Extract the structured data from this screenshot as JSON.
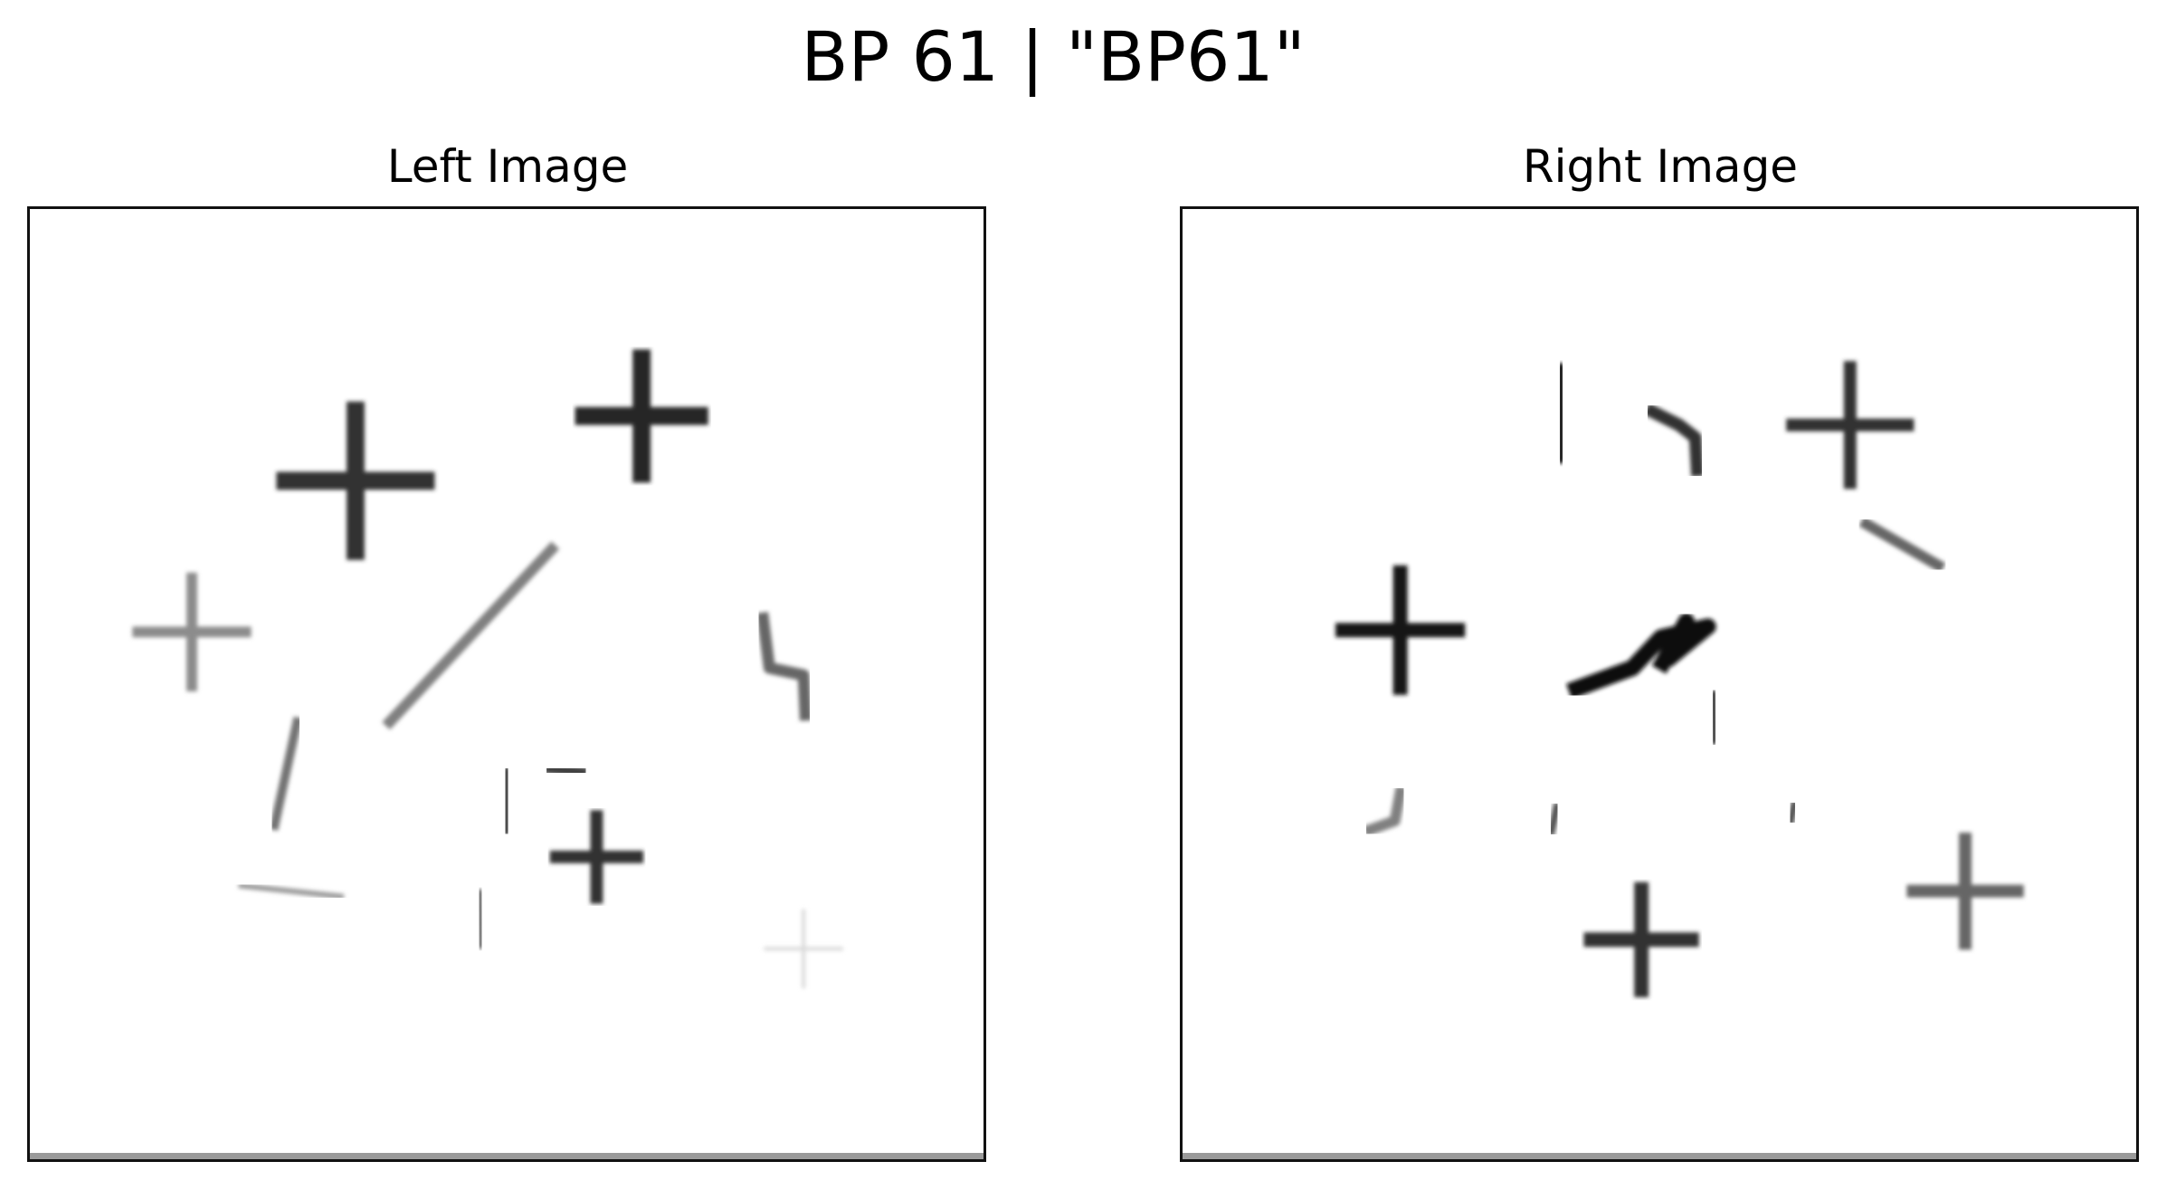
{
  "figure": {
    "title": "BP 61 | \"BP61\""
  },
  "panels": [
    {
      "title": "Left Image",
      "shapes": [
        {
          "kind": "cross",
          "name": "cross-shape",
          "level": 0.8
        },
        {
          "kind": "cross",
          "name": "cross-shape",
          "level": 0.85
        },
        {
          "kind": "cross",
          "name": "cross-shape",
          "level": 0.45
        },
        {
          "kind": "stroke",
          "name": "diagonal-stroke-shape",
          "level": 0.5
        },
        {
          "kind": "zigzag",
          "name": "zigzag-shape",
          "level": 0.6
        },
        {
          "kind": "stroke",
          "name": "slanted-stroke-shape",
          "level": 0.55
        },
        {
          "kind": "bar",
          "name": "vertical-bar-shape",
          "level": 0.7
        },
        {
          "kind": "dash",
          "name": "short-dash-shape",
          "level": 0.75
        },
        {
          "kind": "cross",
          "name": "cross-shape",
          "level": 0.8
        },
        {
          "kind": "dash",
          "name": "dumbbell-dash-shape",
          "level": 0.4
        },
        {
          "kind": "bar",
          "name": "vertical-bar-shape",
          "level": 0.55
        },
        {
          "kind": "cross",
          "name": "cross-shape",
          "level": 0.15
        }
      ]
    },
    {
      "title": "Right Image",
      "shapes": [
        {
          "kind": "bar",
          "name": "vertical-bar-shape",
          "level": 0.85
        },
        {
          "kind": "zigzag",
          "name": "hook-shape",
          "level": 0.8
        },
        {
          "kind": "cross",
          "name": "cross-shape",
          "level": 0.8
        },
        {
          "kind": "stroke",
          "name": "diagonal-stroke-shape",
          "level": 0.6
        },
        {
          "kind": "cross",
          "name": "cross-shape",
          "level": 0.9
        },
        {
          "kind": "cluster",
          "name": "cluster-shape",
          "level": 0.95
        },
        {
          "kind": "bar",
          "name": "vertical-bar-shape",
          "level": 0.7
        },
        {
          "kind": "zigzag",
          "name": "step-shape",
          "level": 0.5
        },
        {
          "kind": "bar",
          "name": "small-tick-shape",
          "level": 0.7
        },
        {
          "kind": "bar",
          "name": "small-tick-shape",
          "level": 0.7
        },
        {
          "kind": "cross",
          "name": "cross-shape",
          "level": 0.6
        },
        {
          "kind": "cross",
          "name": "cross-shape",
          "level": 0.8
        }
      ]
    }
  ]
}
